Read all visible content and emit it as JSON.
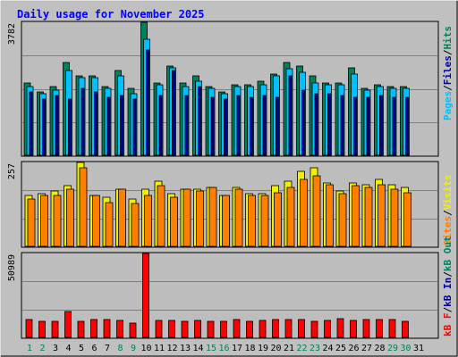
{
  "chart_data": [
    {
      "type": "bar",
      "title": "Daily usage for November 2025",
      "panel": "top",
      "ymax_label": "3782",
      "ylim": [
        0,
        3782
      ],
      "categories": [
        "1",
        "2",
        "3",
        "4",
        "5",
        "6",
        "7",
        "8",
        "9",
        "10",
        "11",
        "12",
        "13",
        "14",
        "15",
        "16",
        "17",
        "18",
        "19",
        "20",
        "21",
        "22",
        "23",
        "24",
        "25",
        "26",
        "27",
        "28",
        "29",
        "30",
        "31"
      ],
      "weekend_days": [
        "1",
        "2",
        "8",
        "9",
        "15",
        "16",
        "22",
        "23",
        "29",
        "30"
      ],
      "legend_right": [
        "Pages",
        "/",
        "Files",
        "/",
        "Hits"
      ],
      "series": [
        {
          "name": "Hits",
          "color": "#00805c",
          "values": [
            2050,
            1800,
            1950,
            2650,
            2250,
            2250,
            1950,
            2400,
            1900,
            3782,
            2050,
            2550,
            2050,
            2250,
            1950,
            1800,
            2000,
            2000,
            2100,
            2300,
            2650,
            2550,
            2250,
            2050,
            2050,
            2500,
            1900,
            2000,
            1950,
            1950,
            0
          ]
        },
        {
          "name": "Files",
          "color": "#00c0ff",
          "values": [
            1950,
            1750,
            1850,
            2400,
            2200,
            2200,
            1900,
            2250,
            1750,
            3300,
            2000,
            2500,
            1950,
            2100,
            1900,
            1750,
            1950,
            1950,
            2000,
            2250,
            2450,
            2350,
            2050,
            2000,
            2000,
            2300,
            1850,
            1950,
            1900,
            1900,
            0
          ]
        },
        {
          "name": "Pages",
          "color": "#0000a0",
          "values": [
            1800,
            1600,
            1700,
            1600,
            1900,
            1800,
            1650,
            1700,
            1600,
            3000,
            1700,
            2400,
            1700,
            1950,
            1650,
            1600,
            1700,
            1650,
            1700,
            1650,
            2250,
            1850,
            1750,
            1750,
            1700,
            1650,
            1650,
            1700,
            1650,
            1650,
            0
          ]
        }
      ]
    },
    {
      "type": "bar",
      "panel": "middle",
      "ymax_label": "257",
      "ylim": [
        0,
        257
      ],
      "legend_right": [
        "Sites",
        "/",
        "Visits"
      ],
      "series": [
        {
          "name": "Visits",
          "color": "#f0f000",
          "values": [
            155,
            160,
            170,
            185,
            257,
            155,
            150,
            175,
            145,
            175,
            200,
            160,
            175,
            175,
            180,
            155,
            180,
            160,
            160,
            185,
            200,
            230,
            240,
            195,
            170,
            195,
            190,
            205,
            190,
            180,
            0
          ]
        },
        {
          "name": "Sites",
          "color": "#ff8000",
          "values": [
            145,
            155,
            155,
            175,
            240,
            155,
            135,
            175,
            130,
            155,
            185,
            150,
            175,
            170,
            180,
            155,
            175,
            155,
            155,
            165,
            180,
            205,
            215,
            190,
            160,
            185,
            180,
            190,
            175,
            165,
            0
          ]
        }
      ]
    },
    {
      "type": "bar",
      "panel": "bottom",
      "ymax_label": "50989",
      "ylim": [
        0,
        50989
      ],
      "legend_right": [
        "kB F",
        "/",
        "kB In",
        "/",
        "kB Out"
      ],
      "series": [
        {
          "name": "kB In",
          "color": "#0000a0",
          "values": [
            0,
            0,
            0,
            0,
            0,
            0,
            0,
            0,
            0,
            0,
            0,
            0,
            0,
            0,
            0,
            0,
            0,
            0,
            0,
            0,
            0,
            0,
            0,
            700,
            0,
            0,
            0,
            0,
            0,
            0,
            0
          ]
        },
        {
          "name": "kB F",
          "color": "#ff0000",
          "values": [
            11000,
            10000,
            10000,
            15500,
            10000,
            11000,
            11000,
            10500,
            8800,
            50989,
            10200,
            10200,
            10000,
            10300,
            10000,
            10000,
            10700,
            10000,
            10200,
            10700,
            10700,
            10700,
            9700,
            10200,
            11500,
            10500,
            10700,
            10800,
            10700,
            9700,
            0
          ]
        }
      ]
    }
  ]
}
